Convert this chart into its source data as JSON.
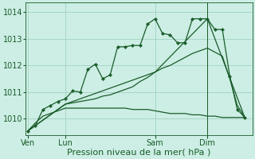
{
  "bg_color": "#cceee4",
  "grid_color": "#99ccbb",
  "line_color": "#1a5c2a",
  "xlabel": "Pression niveau de la mer( hPa )",
  "xlabel_fontsize": 8,
  "ylim": [
    1009.4,
    1014.35
  ],
  "yticks": [
    1010,
    1011,
    1012,
    1013,
    1014
  ],
  "ytick_fontsize": 7,
  "xtick_labels": [
    "Ven",
    "Lun",
    "Sam",
    "Dim"
  ],
  "xtick_positions": [
    0,
    5,
    17,
    24
  ],
  "xlim": [
    -0.3,
    30
  ],
  "vline_x": 24,
  "series1_x": [
    0,
    1,
    2,
    3,
    4,
    5,
    6,
    7,
    8,
    9,
    10,
    11,
    12,
    13,
    14,
    15,
    16,
    17,
    18,
    19,
    20,
    21,
    22,
    23,
    24,
    25,
    26,
    27,
    28,
    29
  ],
  "series1_y": [
    1009.55,
    1009.75,
    1010.35,
    1010.5,
    1010.65,
    1010.75,
    1011.05,
    1011.0,
    1011.85,
    1012.05,
    1011.5,
    1011.65,
    1012.7,
    1012.7,
    1012.75,
    1012.75,
    1013.55,
    1013.75,
    1013.2,
    1013.15,
    1012.85,
    1012.85,
    1013.75,
    1013.75,
    1013.75,
    1013.35,
    1013.35,
    1011.6,
    1010.35,
    1010.05
  ],
  "series2_x": [
    0,
    5,
    6,
    7,
    8,
    9,
    10,
    11,
    12,
    13,
    14,
    15,
    16,
    17,
    18,
    19,
    20,
    21,
    22,
    23,
    24,
    25,
    26,
    27,
    28,
    29
  ],
  "series2_y": [
    1009.55,
    1010.55,
    1010.6,
    1010.65,
    1010.7,
    1010.75,
    1010.85,
    1010.9,
    1011.0,
    1011.1,
    1011.2,
    1011.4,
    1011.55,
    1011.75,
    1011.9,
    1012.0,
    1012.15,
    1012.3,
    1012.45,
    1012.55,
    1012.65,
    1012.5,
    1012.35,
    1011.5,
    1010.5,
    1010.05
  ],
  "series3_x": [
    0,
    5,
    17,
    24,
    29
  ],
  "series3_y": [
    1009.55,
    1010.55,
    1011.75,
    1013.75,
    1010.05
  ],
  "series4_x": [
    0,
    1,
    2,
    3,
    4,
    5,
    6,
    7,
    8,
    9,
    10,
    11,
    12,
    13,
    14,
    15,
    16,
    17,
    18,
    19,
    20,
    21,
    22,
    23,
    24,
    25,
    26,
    27,
    28,
    29
  ],
  "series4_y": [
    1009.55,
    1009.85,
    1010.1,
    1010.2,
    1010.3,
    1010.4,
    1010.4,
    1010.4,
    1010.4,
    1010.4,
    1010.4,
    1010.4,
    1010.4,
    1010.4,
    1010.35,
    1010.35,
    1010.35,
    1010.3,
    1010.25,
    1010.2,
    1010.2,
    1010.2,
    1010.15,
    1010.15,
    1010.1,
    1010.1,
    1010.05,
    1010.05,
    1010.05,
    1010.05
  ],
  "figsize": [
    3.2,
    2.0
  ],
  "dpi": 100
}
